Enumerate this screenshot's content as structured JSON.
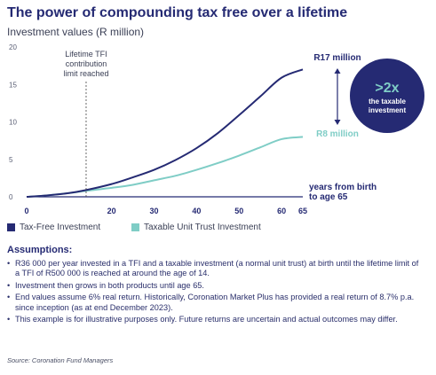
{
  "title": "The power of compounding tax free over a lifetime",
  "subtitle": "Investment values (R million)",
  "chart_data": {
    "type": "line",
    "x": [
      0,
      5,
      10,
      14,
      20,
      25,
      30,
      35,
      40,
      45,
      50,
      55,
      60,
      65
    ],
    "x_ticks": [
      {
        "value": 0,
        "label": "0"
      },
      {
        "value": 20,
        "label": "20"
      },
      {
        "value": 30,
        "label": "30"
      },
      {
        "value": 40,
        "label": "40"
      },
      {
        "value": 50,
        "label": "50"
      },
      {
        "value": 60,
        "label": "60"
      },
      {
        "value": 65,
        "label": "65"
      }
    ],
    "y_ticks": [
      0,
      5,
      10,
      15,
      20
    ],
    "xlim": [
      0,
      65
    ],
    "ylim": [
      0,
      20
    ],
    "grid": false,
    "series": [
      {
        "name": "Tax-Free Investment",
        "color": "#252a73",
        "values": [
          0,
          0.2,
          0.5,
          0.9,
          1.7,
          2.6,
          3.6,
          4.9,
          6.5,
          8.5,
          10.9,
          13.4,
          15.9,
          17.0
        ]
      },
      {
        "name": "Taxable Unit Trust Investment",
        "color": "#7fcdc6",
        "values": [
          0,
          0.2,
          0.5,
          0.8,
          1.2,
          1.6,
          2.2,
          2.8,
          3.6,
          4.5,
          5.5,
          6.6,
          7.7,
          8.0
        ]
      }
    ],
    "annotations": {
      "contribution_line_x": 14,
      "contribution_label": [
        "Lifetime TFI",
        "contribution",
        "limit reached"
      ],
      "end_label_tfi": "R17 million",
      "end_label_taxable": "R8 million",
      "x_axis_label": [
        "years from birth",
        "to age 65"
      ],
      "badge_big": ">2x",
      "badge_small": [
        "the taxable",
        "investment"
      ]
    }
  },
  "legend": {
    "tfi": "Tax-Free Investment",
    "taxable": "Taxable Unit Trust Investment",
    "tfi_color": "#252a73",
    "taxable_color": "#7fcdc6"
  },
  "assumptions": {
    "heading": "Assumptions:",
    "items": [
      "R36 000 per year invested in a TFI and a taxable investment (a normal unit trust) at birth until the lifetime limit of a TFI of R500 000 is reached at around the age of 14.",
      "Investment then grows in both products until age 65.",
      "End values assume 6% real return. Historically, Coronation Market Plus has provided a real return of 8.7% p.a. since inception (as at end December 2023).",
      "This example is for illustrative purposes only. Future returns are uncertain and actual outcomes may differ."
    ]
  },
  "source": "Source: Coronation Fund Managers"
}
